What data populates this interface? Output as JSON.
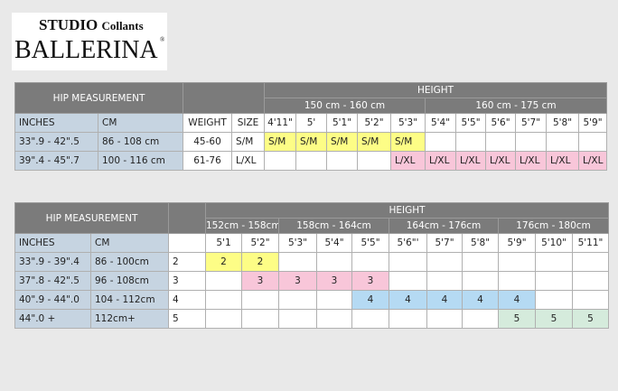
{
  "logo": {
    "line1a": "STUDIO",
    "line1b": "Collants",
    "line2": "BALLERINA",
    "reg": "®"
  },
  "colors": {
    "header": "#7b7b7b",
    "label_bg": "#c6d4e1",
    "yellow": "#fdfd86",
    "pink": "#f8c6d9",
    "blue": "#b5daf3",
    "green": "#d5ebdc"
  },
  "table1": {
    "hip": "HIP MEASUREMENT",
    "height": "HEIGHT",
    "groups": [
      {
        "label": "150 cm - 160 cm",
        "span": 5
      },
      {
        "label": "160 cm - 175 cm",
        "span": 6
      }
    ],
    "columns": [
      "INCHES",
      "CM",
      "WEIGHT",
      "SIZE",
      "4'11\"",
      "5'",
      "5'1\"",
      "5'2\"",
      "5'3\"",
      "5'4\"",
      "5'5\"",
      "5'6\"",
      "5'7\"",
      "5'8\"",
      "5'9\""
    ],
    "rows": [
      {
        "inches": "33\".9 - 42\".5",
        "cm": "86 - 108 cm",
        "weight": "45-60",
        "size": "S/M",
        "cells": [
          "S/M",
          "S/M",
          "S/M",
          "S/M",
          "S/M",
          "",
          "",
          "",
          "",
          "",
          ""
        ],
        "color": "yellow"
      },
      {
        "inches": "39\".4 - 45\".7",
        "cm": "100 - 116 cm",
        "weight": "61-76",
        "size": "L/XL",
        "cells": [
          "",
          "",
          "",
          "",
          "L/XL",
          "L/XL",
          "L/XL",
          "L/XL",
          "L/XL",
          "L/XL",
          "L/XL"
        ],
        "color": "pink"
      }
    ]
  },
  "table2": {
    "hip": "HIP MEASUREMENT",
    "height": "HEIGHT",
    "groups": [
      {
        "label": "152cm - 158cm",
        "span": 2
      },
      {
        "label": "158cm - 164cm",
        "span": 3
      },
      {
        "label": "164cm - 176cm",
        "span": 3
      },
      {
        "label": "176cm - 180cm",
        "span": 3
      }
    ],
    "columns": [
      "INCHES",
      "CM",
      "",
      "5'1",
      "5'2\"",
      "5'3\"",
      "5'4\"",
      "5'5\"",
      "5'6\"'",
      "5'7\"",
      "5'8\"",
      "5'9\"",
      "5'10\"",
      "5'11\""
    ],
    "rows": [
      {
        "inches": "33\".9 - 39\".4",
        "cm": "86 - 100cm",
        "size": "2",
        "cells": [
          "2",
          "2",
          "",
          "",
          "",
          "",
          "",
          "",
          "",
          "",
          ""
        ],
        "color": "yellow"
      },
      {
        "inches": "37\".8 - 42\".5",
        "cm": "96 - 108cm",
        "size": "3",
        "cells": [
          "",
          "3",
          "3",
          "3",
          "3",
          "",
          "",
          "",
          "",
          "",
          ""
        ],
        "color": "pink"
      },
      {
        "inches": "40\".9 - 44\".0",
        "cm": "104 - 112cm",
        "size": "4",
        "cells": [
          "",
          "",
          "",
          "",
          "4",
          "4",
          "4",
          "4",
          "4",
          "",
          ""
        ],
        "color": "blue"
      },
      {
        "inches": "44\".0 +",
        "cm": "112cm+",
        "size": "5",
        "cells": [
          "",
          "",
          "",
          "",
          "",
          "",
          "",
          "",
          "5",
          "5",
          "5"
        ],
        "color": "green"
      }
    ]
  }
}
